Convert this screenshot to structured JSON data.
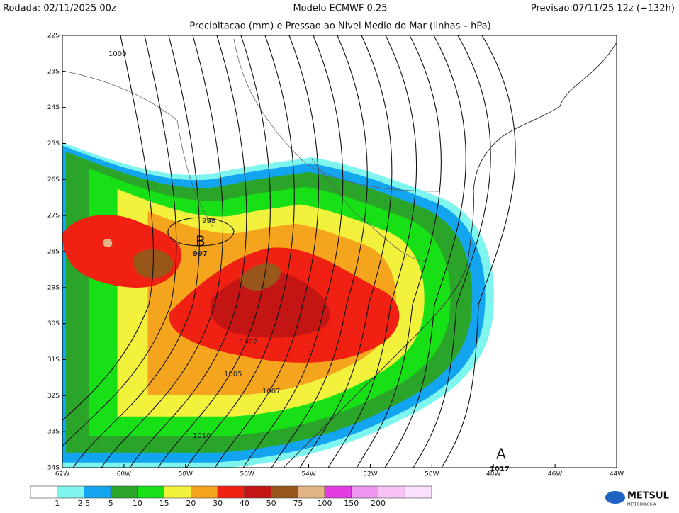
{
  "header": {
    "run": "Rodada: 02/11/2025 00z",
    "model": "Modelo ECMWF 0.25",
    "forecast": "Previsao:07/11/25 12z (+132h)",
    "subtitle": "Precipitacao (mm) e Pressao ao Nivel Medio do Mar (linhas – hPa)"
  },
  "map": {
    "lat_labels": [
      "22S",
      "23S",
      "24S",
      "25S",
      "26S",
      "27S",
      "28S",
      "29S",
      "30S",
      "31S",
      "32S",
      "33S",
      "34S"
    ],
    "lon_labels": [
      "62W",
      "60W",
      "58W",
      "56W",
      "54W",
      "52W",
      "50W",
      "48W",
      "46W",
      "44W"
    ],
    "isobar_labels": [
      "1000",
      "998",
      "997",
      "1002",
      "1005",
      "1007",
      "1010",
      "1017"
    ],
    "pressure_centers": [
      "B",
      "A"
    ]
  },
  "legend": {
    "colors": [
      "#ffffff",
      "#7ff5ef",
      "#14a5f0",
      "#2aa52a",
      "#17e017",
      "#f2f23c",
      "#f5a51d",
      "#f02012",
      "#c41515",
      "#98561a",
      "#e2b486",
      "#e23ce2",
      "#f096f0",
      "#f7c3f7",
      "#fbe1fb"
    ],
    "labels": [
      "1",
      "2.5",
      "5",
      "10",
      "15",
      "20",
      "30",
      "40",
      "50",
      "75",
      "100",
      "150",
      "200"
    ]
  },
  "logo": {
    "text": "METSUL",
    "subtext": "METEOROLOGIA"
  }
}
